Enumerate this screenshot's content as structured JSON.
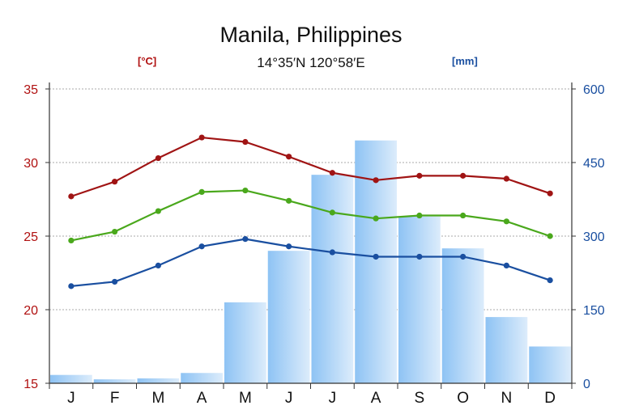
{
  "chart_data": {
    "type": "line",
    "title": "Manila, Philippines",
    "subtitle": "14°35′N 120°58′E",
    "left_axis_unit": "[°C]",
    "right_axis_unit": "[mm]",
    "categories": [
      "J",
      "F",
      "M",
      "A",
      "M",
      "J",
      "J",
      "A",
      "S",
      "O",
      "N",
      "D"
    ],
    "ylim_left": [
      15,
      35
    ],
    "yticks_left": [
      15,
      20,
      25,
      30,
      35
    ],
    "ylim_right": [
      0,
      600
    ],
    "yticks_right": [
      0,
      150,
      300,
      450,
      600
    ],
    "grid": true,
    "series": [
      {
        "type": "bar",
        "axis": "right",
        "color": "#9ccbf5",
        "values": [
          17,
          8,
          10,
          21,
          165,
          270,
          425,
          495,
          340,
          275,
          135,
          75
        ]
      },
      {
        "type": "line",
        "axis": "left",
        "color": "#a01414",
        "values": [
          27.7,
          28.7,
          30.3,
          31.7,
          31.4,
          30.4,
          29.3,
          28.8,
          29.1,
          29.1,
          28.9,
          27.9
        ]
      },
      {
        "type": "line",
        "axis": "left",
        "color": "#4aa81c",
        "values": [
          24.7,
          25.3,
          26.7,
          28.0,
          28.1,
          27.4,
          26.6,
          26.2,
          26.4,
          26.4,
          26.0,
          25.0
        ]
      },
      {
        "type": "line",
        "axis": "left",
        "color": "#1a4fa0",
        "values": [
          21.6,
          21.9,
          23.0,
          24.3,
          24.8,
          24.3,
          23.9,
          23.6,
          23.6,
          23.6,
          23.0,
          22.0
        ]
      }
    ]
  }
}
